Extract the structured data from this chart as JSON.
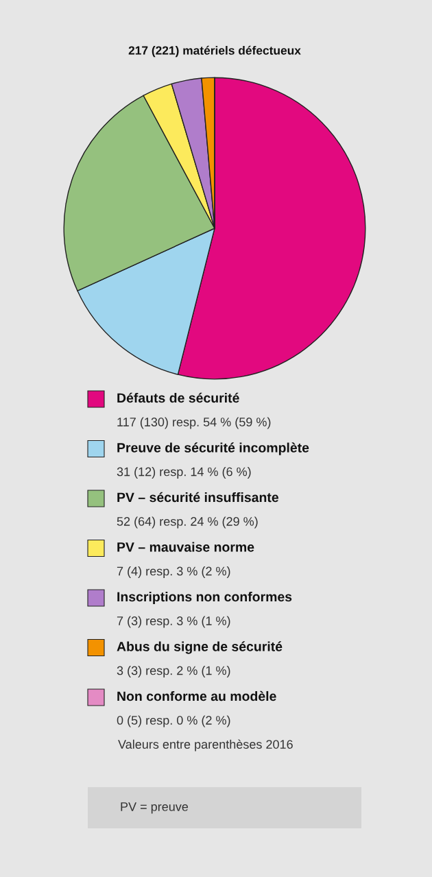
{
  "chart_data": {
    "type": "pie",
    "title": "217 (221) matériels défectueux",
    "categories": [
      "Défauts de sécurité",
      "Preuve de sécurité incomplète",
      "PV – sécurité insuffisante",
      "PV – mauvaise norme",
      "Inscriptions non conformes",
      "Abus du signe de sécurité",
      "Non conforme au modèle"
    ],
    "values": [
      117,
      31,
      52,
      7,
      7,
      3,
      0
    ],
    "colors": [
      "#e2097f",
      "#9fd5ee",
      "#95c17e",
      "#fcea5c",
      "#b07dcb",
      "#f39200",
      "#e48bc4"
    ],
    "value_labels": [
      "117 (130) resp. 54 % (59 %)",
      "31 (12) resp. 14 % (6 %)",
      "52 (64) resp. 24 % (29 %)",
      "7 (4) resp. 3 % (2 %)",
      "7 (3) resp. 3 % (1 %)",
      "3 (3) resp. 2 % (1 %)",
      "0 (5) resp. 0 % (2 %)"
    ],
    "legend": "bottom",
    "annotations": [
      "Valeurs entre parenthèses 2016",
      "PV = preuve"
    ]
  }
}
